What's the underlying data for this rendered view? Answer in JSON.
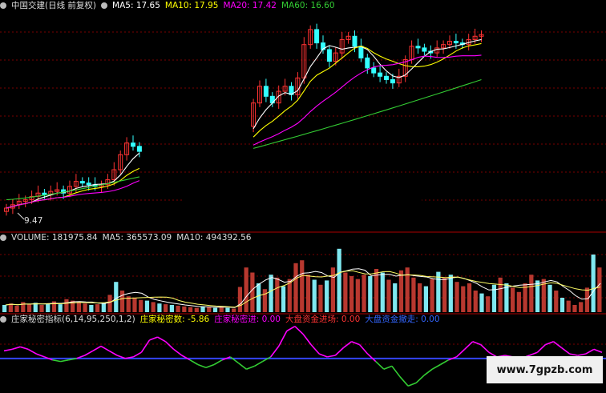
{
  "main_panel": {
    "title": "中国交建(日线 前复权)",
    "legend": [
      {
        "label": "MA5: 17.65",
        "color": "#ffffff"
      },
      {
        "label": "MA10: 17.95",
        "color": "#ffff00"
      },
      {
        "label": "MA20: 17.42",
        "color": "#ff00ff"
      },
      {
        "label": "MA60: 16.60",
        "color": "#33cc33"
      }
    ],
    "low_marker": "9.47"
  },
  "volume_panel": {
    "legend": [
      {
        "label": "VOLUME: 181975.84",
        "color": "#ffffff"
      },
      {
        "label": "MA5: 365573.09",
        "color": "#ffffff"
      },
      {
        "label": "MA10: 494392.56",
        "color": "#ffffff"
      }
    ]
  },
  "indicator_panel": {
    "title": "庄家秘密指标(6,14,95,250,1,2)",
    "legend": [
      {
        "label": "庄家秘密数: -5.86",
        "color": "#ffff00"
      },
      {
        "label": "庄家秘密进: 0.00",
        "color": "#ff00ff"
      },
      {
        "label": "大盘资金进场: 0.00",
        "color": "#ff3333"
      },
      {
        "label": "大盘资金撤走: 0.00",
        "color": "#3366ff"
      }
    ]
  },
  "watermark": "www.7gpzb.com",
  "chart_data": [
    {
      "type": "candlestick",
      "title": "中国交建(日线 前复权)",
      "ylim": [
        8.5,
        21.5
      ],
      "gap": [
        22,
        38
      ],
      "series_colors": {
        "up": "#ff3333",
        "down": "#33ffff",
        "ma5": "#ffffff",
        "ma10": "#ffff00",
        "ma20": "#ff00ff",
        "ma60": "#33cc33"
      },
      "close": [
        9.7,
        9.9,
        10.1,
        10.2,
        10.4,
        10.6,
        10.5,
        10.7,
        10.8,
        10.6,
        11.0,
        11.3,
        11.2,
        11.1,
        11.0,
        11.1,
        11.4,
        12.0,
        12.9,
        13.6,
        13.4,
        13.1,
        12.9,
        13.1,
        12.9,
        12.8,
        12.8,
        12.9,
        13.0,
        13.1,
        13.2,
        13.3,
        13.5,
        13.6,
        13.7,
        13.8,
        13.9,
        14.0,
        14.6,
        16.0,
        17.0,
        16.4,
        16.0,
        16.7,
        17.0,
        16.5,
        17.5,
        19.5,
        20.4,
        19.6,
        19.2,
        18.5,
        19.0,
        19.8,
        20.0,
        19.4,
        18.7,
        18.1,
        17.8,
        17.6,
        17.4,
        17.2,
        17.6,
        18.6,
        19.4,
        19.3,
        19.1,
        19.0,
        19.3,
        19.5,
        19.7,
        19.6,
        19.5,
        19.8,
        20.0,
        20.1
      ],
      "ma60_end": 16.6
    },
    {
      "type": "bar",
      "title": "VOLUME",
      "ylim": [
        0,
        1.0
      ],
      "values": [
        0.1,
        0.12,
        0.09,
        0.14,
        0.11,
        0.13,
        0.1,
        0.12,
        0.15,
        0.11,
        0.18,
        0.16,
        0.14,
        0.12,
        0.1,
        0.11,
        0.13,
        0.24,
        0.42,
        0.3,
        0.22,
        0.2,
        0.17,
        0.16,
        0.14,
        0.12,
        0.11,
        0.1,
        0.09,
        0.08,
        0.07,
        0.06,
        0.08,
        0.07,
        0.06,
        0.08,
        0.06,
        0.05,
        0.35,
        0.62,
        0.55,
        0.4,
        0.32,
        0.52,
        0.48,
        0.36,
        0.46,
        0.68,
        0.72,
        0.52,
        0.45,
        0.38,
        0.44,
        0.62,
        0.88,
        0.55,
        0.5,
        0.46,
        0.52,
        0.5,
        0.6,
        0.55,
        0.45,
        0.4,
        0.58,
        0.62,
        0.48,
        0.4,
        0.36,
        0.46,
        0.56,
        0.48,
        0.52,
        0.42,
        0.36,
        0.4,
        0.3,
        0.26,
        0.22,
        0.38,
        0.48,
        0.4,
        0.34,
        0.28,
        0.4,
        0.52,
        0.44,
        0.46,
        0.38,
        0.3,
        0.2,
        0.16,
        0.1,
        0.14,
        0.34,
        0.8,
        0.62
      ]
    },
    {
      "type": "line",
      "title": "庄家秘密指标(6,14,95,250,1,2)",
      "ylim": [
        -1.0,
        1.2
      ],
      "baseline": 0,
      "values": [
        0.25,
        0.3,
        0.38,
        0.3,
        0.15,
        0.05,
        -0.05,
        -0.1,
        -0.05,
        0.0,
        0.1,
        0.25,
        0.4,
        0.25,
        0.1,
        0.0,
        0.05,
        0.2,
        0.6,
        0.7,
        0.55,
        0.3,
        0.1,
        -0.05,
        -0.2,
        -0.3,
        -0.2,
        -0.05,
        0.05,
        -0.15,
        -0.35,
        -0.25,
        -0.1,
        0.05,
        0.4,
        0.9,
        1.05,
        0.8,
        0.45,
        0.15,
        0.05,
        0.1,
        0.35,
        0.55,
        0.45,
        0.15,
        -0.1,
        -0.35,
        -0.25,
        -0.6,
        -0.9,
        -0.8,
        -0.55,
        -0.35,
        -0.2,
        -0.05,
        0.05,
        0.3,
        0.55,
        0.45,
        0.2,
        0.05,
        0.1,
        0.05,
        0.0,
        0.1,
        0.2,
        0.45,
        0.55,
        0.35,
        0.15,
        0.1,
        0.15,
        0.3,
        0.2
      ]
    }
  ]
}
